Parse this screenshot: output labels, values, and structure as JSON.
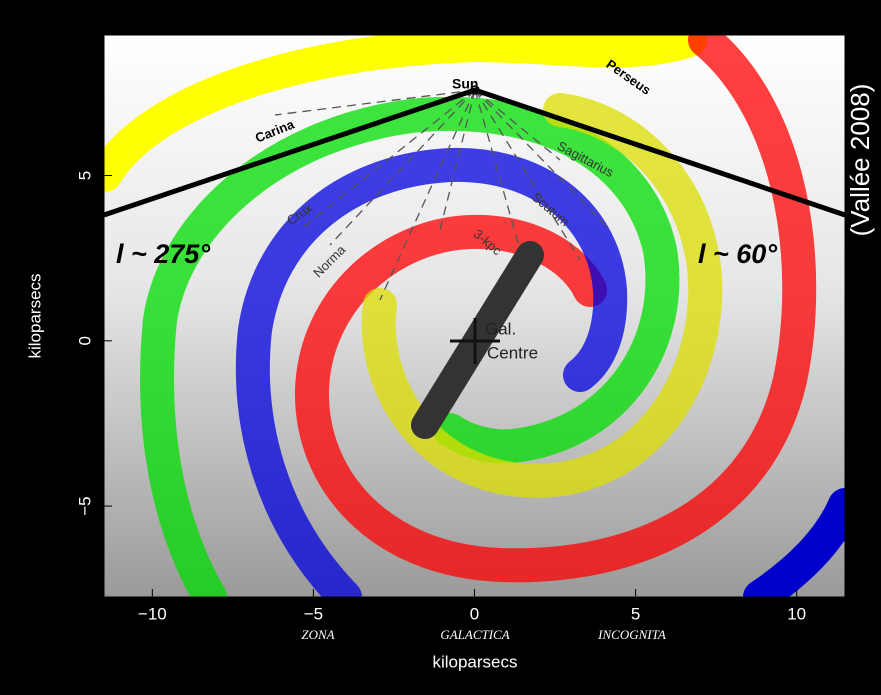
{
  "chart_data": {
    "type": "spiral-map",
    "xlabel": "kiloparsecs",
    "ylabel": "kiloparsecs",
    "xlim": [
      -11.5,
      11.5
    ],
    "ylim": [
      -7.75,
      9.25
    ],
    "xticks": [
      {
        "value": -10,
        "label": "−10"
      },
      {
        "value": -5,
        "label": "−5"
      },
      0,
      5,
      10
    ],
    "yticks": [
      {
        "value": -5,
        "label": "−5"
      },
      0,
      5
    ],
    "arm_labels": [
      "Perseus",
      "Carina",
      "Sagittarius",
      "Crux",
      "Scutum",
      "Norma",
      "3-kpc"
    ],
    "sun_label": "Sun",
    "centre_label": [
      "Gal.",
      "Centre"
    ],
    "longitude_labels": [
      "l ~ 275°",
      "l ~ 60°"
    ],
    "zone_labels": [
      "ZONA",
      "GALACTICA",
      "INCOGNITA"
    ],
    "credit": "(Vallée 2008)"
  }
}
